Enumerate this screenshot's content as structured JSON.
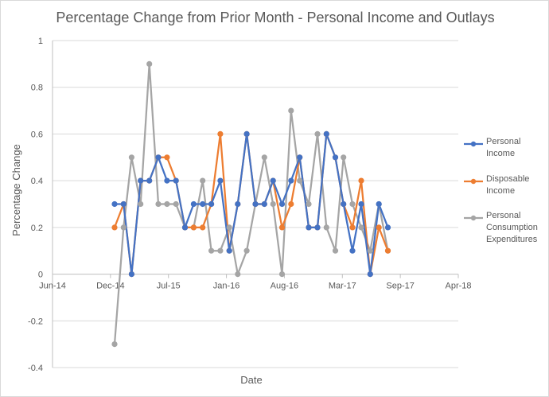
{
  "chart_data": {
    "type": "line",
    "title": "Percentage Change from Prior Month - Personal Income and Outlays",
    "xlabel": "Date",
    "ylabel": "Percentage Change",
    "x_ticks": [
      "Jun-14",
      "Dec-14",
      "Jul-15",
      "Jan-16",
      "Aug-16",
      "Mar-17",
      "Sep-17",
      "Apr-18"
    ],
    "y_ticks": [
      "1",
      "0.8",
      "0.6",
      "0.4",
      "0.2",
      "0",
      "-0.2",
      "-0.4"
    ],
    "ylim": [
      -0.4,
      1
    ],
    "xlim": [
      "2014-06-01",
      "2018-04-01"
    ],
    "grid": "horizontal",
    "legend": "right",
    "series": [
      {
        "name": "Personal Income",
        "legend_lines": [
          "Personal",
          "Income"
        ],
        "color": "#4472c4",
        "points": [
          {
            "x": "2015-01-01",
            "y": 0.3
          },
          {
            "x": "2015-02-01",
            "y": 0.3
          },
          {
            "x": "2015-03-01",
            "y": 0
          },
          {
            "x": "2015-04-01",
            "y": 0.4
          },
          {
            "x": "2015-05-01",
            "y": 0.4
          },
          {
            "x": "2015-06-01",
            "y": 0.5
          },
          {
            "x": "2015-07-01",
            "y": 0.4
          },
          {
            "x": "2015-08-01",
            "y": 0.4
          },
          {
            "x": "2015-09-01",
            "y": 0.2
          },
          {
            "x": "2015-10-01",
            "y": 0.3
          },
          {
            "x": "2015-11-01",
            "y": 0.3
          },
          {
            "x": "2015-12-01",
            "y": 0.3
          },
          {
            "x": "2016-01-01",
            "y": 0.4
          },
          {
            "x": "2016-02-01",
            "y": 0.1
          },
          {
            "x": "2016-03-01",
            "y": 0.3
          },
          {
            "x": "2016-04-01",
            "y": 0.6
          },
          {
            "x": "2016-05-01",
            "y": 0.3
          },
          {
            "x": "2016-06-01",
            "y": 0.3
          },
          {
            "x": "2016-07-01",
            "y": 0.4
          },
          {
            "x": "2016-08-01",
            "y": 0.3
          },
          {
            "x": "2016-09-01",
            "y": 0.4
          },
          {
            "x": "2016-10-01",
            "y": 0.5
          },
          {
            "x": "2016-11-01",
            "y": 0.2
          },
          {
            "x": "2016-12-01",
            "y": 0.2
          },
          {
            "x": "2017-01-01",
            "y": 0.6
          },
          {
            "x": "2017-02-01",
            "y": 0.5
          },
          {
            "x": "2017-03-01",
            "y": 0.3
          },
          {
            "x": "2017-04-01",
            "y": 0.1
          },
          {
            "x": "2017-05-01",
            "y": 0.3
          },
          {
            "x": "2017-06-01",
            "y": 0
          },
          {
            "x": "2017-07-01",
            "y": 0.3
          },
          {
            "x": "2017-08-01",
            "y": 0.2
          }
        ]
      },
      {
        "name": "Disposable Income",
        "legend_lines": [
          "Disposable",
          "Income"
        ],
        "color": "#ed7d31",
        "points": [
          {
            "x": "2015-01-01",
            "y": 0.2
          },
          {
            "x": "2015-02-01",
            "y": 0.3
          },
          {
            "x": "2015-03-01",
            "y": 0
          },
          {
            "x": "2015-04-01",
            "y": 0.4
          },
          {
            "x": "2015-05-01",
            "y": 0.4
          },
          {
            "x": "2015-06-01",
            "y": 0.5
          },
          {
            "x": "2015-07-01",
            "y": 0.5
          },
          {
            "x": "2015-08-01",
            "y": 0.4
          },
          {
            "x": "2015-09-01",
            "y": 0.2
          },
          {
            "x": "2015-10-01",
            "y": 0.2
          },
          {
            "x": "2015-11-01",
            "y": 0.2
          },
          {
            "x": "2015-12-01",
            "y": 0.3
          },
          {
            "x": "2016-01-01",
            "y": 0.6
          },
          {
            "x": "2016-02-01",
            "y": 0.1
          },
          {
            "x": "2016-03-01",
            "y": 0.3
          },
          {
            "x": "2016-04-01",
            "y": 0.6
          },
          {
            "x": "2016-05-01",
            "y": 0.3
          },
          {
            "x": "2016-06-01",
            "y": 0.3
          },
          {
            "x": "2016-07-01",
            "y": 0.4
          },
          {
            "x": "2016-08-01",
            "y": 0.2
          },
          {
            "x": "2016-09-01",
            "y": 0.3
          },
          {
            "x": "2016-10-01",
            "y": 0.5
          },
          {
            "x": "2016-11-01",
            "y": 0.2
          },
          {
            "x": "2016-12-01",
            "y": 0.2
          },
          {
            "x": "2017-01-01",
            "y": 0.6
          },
          {
            "x": "2017-02-01",
            "y": 0.5
          },
          {
            "x": "2017-03-01",
            "y": 0.3
          },
          {
            "x": "2017-04-01",
            "y": 0.2
          },
          {
            "x": "2017-05-01",
            "y": 0.4
          },
          {
            "x": "2017-06-01",
            "y": 0
          },
          {
            "x": "2017-07-01",
            "y": 0.2
          },
          {
            "x": "2017-08-01",
            "y": 0.1
          }
        ]
      },
      {
        "name": "Personal Consumption Expenditures",
        "legend_lines": [
          "Personal",
          "Consumption",
          "Expenditures"
        ],
        "color": "#a5a5a5",
        "points": [
          {
            "x": "2015-01-01",
            "y": -0.3
          },
          {
            "x": "2015-02-01",
            "y": 0.2
          },
          {
            "x": "2015-03-01",
            "y": 0.5
          },
          {
            "x": "2015-04-01",
            "y": 0.3
          },
          {
            "x": "2015-05-01",
            "y": 0.9
          },
          {
            "x": "2015-06-01",
            "y": 0.3
          },
          {
            "x": "2015-07-01",
            "y": 0.3
          },
          {
            "x": "2015-08-01",
            "y": 0.3
          },
          {
            "x": "2015-09-01",
            "y": 0.2
          },
          {
            "x": "2015-10-01",
            "y": 0.2
          },
          {
            "x": "2015-11-01",
            "y": 0.4
          },
          {
            "x": "2015-12-01",
            "y": 0.1
          },
          {
            "x": "2016-01-01",
            "y": 0.1
          },
          {
            "x": "2016-02-01",
            "y": 0.2
          },
          {
            "x": "2016-03-01",
            "y": 0
          },
          {
            "x": "2016-04-01",
            "y": 0.1
          },
          {
            "x": "2016-05-01",
            "y": 0.3
          },
          {
            "x": "2016-06-01",
            "y": 0.5
          },
          {
            "x": "2016-07-01",
            "y": 0.3
          },
          {
            "x": "2016-08-01",
            "y": 0
          },
          {
            "x": "2016-09-01",
            "y": 0.7
          },
          {
            "x": "2016-10-01",
            "y": 0.4
          },
          {
            "x": "2016-11-01",
            "y": 0.3
          },
          {
            "x": "2016-12-01",
            "y": 0.6
          },
          {
            "x": "2017-01-01",
            "y": 0.2
          },
          {
            "x": "2017-02-01",
            "y": 0.1
          },
          {
            "x": "2017-03-01",
            "y": 0.5
          },
          {
            "x": "2017-04-01",
            "y": 0.3
          },
          {
            "x": "2017-05-01",
            "y": 0.2
          },
          {
            "x": "2017-06-01",
            "y": 0.1
          },
          {
            "x": "2017-07-01",
            "y": 0.3
          },
          {
            "x": "2017-08-01",
            "y": 0.1
          }
        ]
      }
    ]
  }
}
